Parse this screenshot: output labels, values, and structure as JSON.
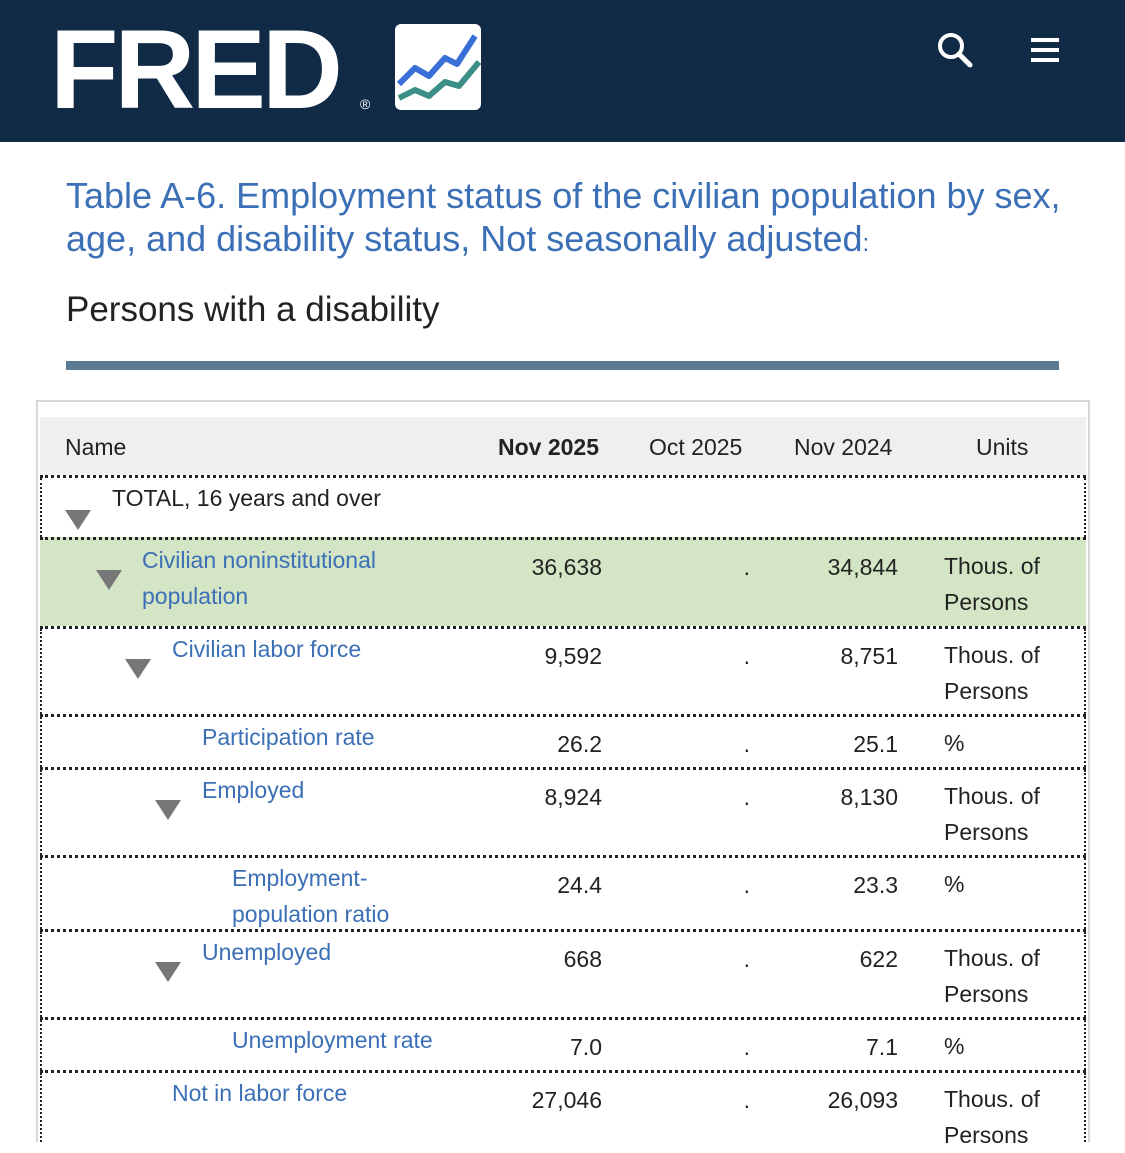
{
  "header": {
    "logo": "FRED",
    "registered": "®",
    "search_icon": "search-icon",
    "menu_icon": "hamburger-menu-icon",
    "colors": {
      "bg": "#112a46",
      "logo_line1": "#3a6fd8",
      "logo_line2": "#3c8f87"
    }
  },
  "page": {
    "title": "Table A-6. Employment status of the civilian population by sex, age, and disability status, Not seasonally adjusted",
    "title_suffix": ":",
    "subtitle": "Persons with a disability"
  },
  "table": {
    "headers": {
      "name": "Name",
      "col1": "Nov 2025",
      "col2": "Oct 2025",
      "col3": "Nov 2024",
      "units": "Units"
    },
    "rows": [
      {
        "label": "TOTAL, 16 years and over",
        "v1": "",
        "v2": "",
        "v3": "",
        "units_line1": "",
        "units_line2": ""
      },
      {
        "label_line1": "Civilian noninstitutional",
        "label_line2": "population",
        "v1": "36,638",
        "v2": ".",
        "v3": "34,844",
        "units_line1": "Thous. of",
        "units_line2": "Persons"
      },
      {
        "label": "Civilian labor force",
        "v1": "9,592",
        "v2": ".",
        "v3": "8,751",
        "units_line1": "Thous. of",
        "units_line2": "Persons"
      },
      {
        "label": "Participation rate",
        "v1": "26.2",
        "v2": ".",
        "v3": "25.1",
        "units_line1": "%"
      },
      {
        "label": "Employed",
        "v1": "8,924",
        "v2": ".",
        "v3": "8,130",
        "units_line1": "Thous. of",
        "units_line2": "Persons"
      },
      {
        "label_line1": "Employment-",
        "label_line2": "population ratio",
        "v1": "24.4",
        "v2": ".",
        "v3": "23.3",
        "units_line1": "%"
      },
      {
        "label": "Unemployed",
        "v1": "668",
        "v2": ".",
        "v3": "622",
        "units_line1": "Thous. of",
        "units_line2": "Persons"
      },
      {
        "label": "Unemployment rate",
        "v1": "7.0",
        "v2": ".",
        "v3": "7.1",
        "units_line1": "%"
      },
      {
        "label": "Not in labor force",
        "v1": "27,046",
        "v2": ".",
        "v3": "26,093",
        "units_line1": "Thous. of",
        "units_line2": "Persons"
      }
    ]
  }
}
